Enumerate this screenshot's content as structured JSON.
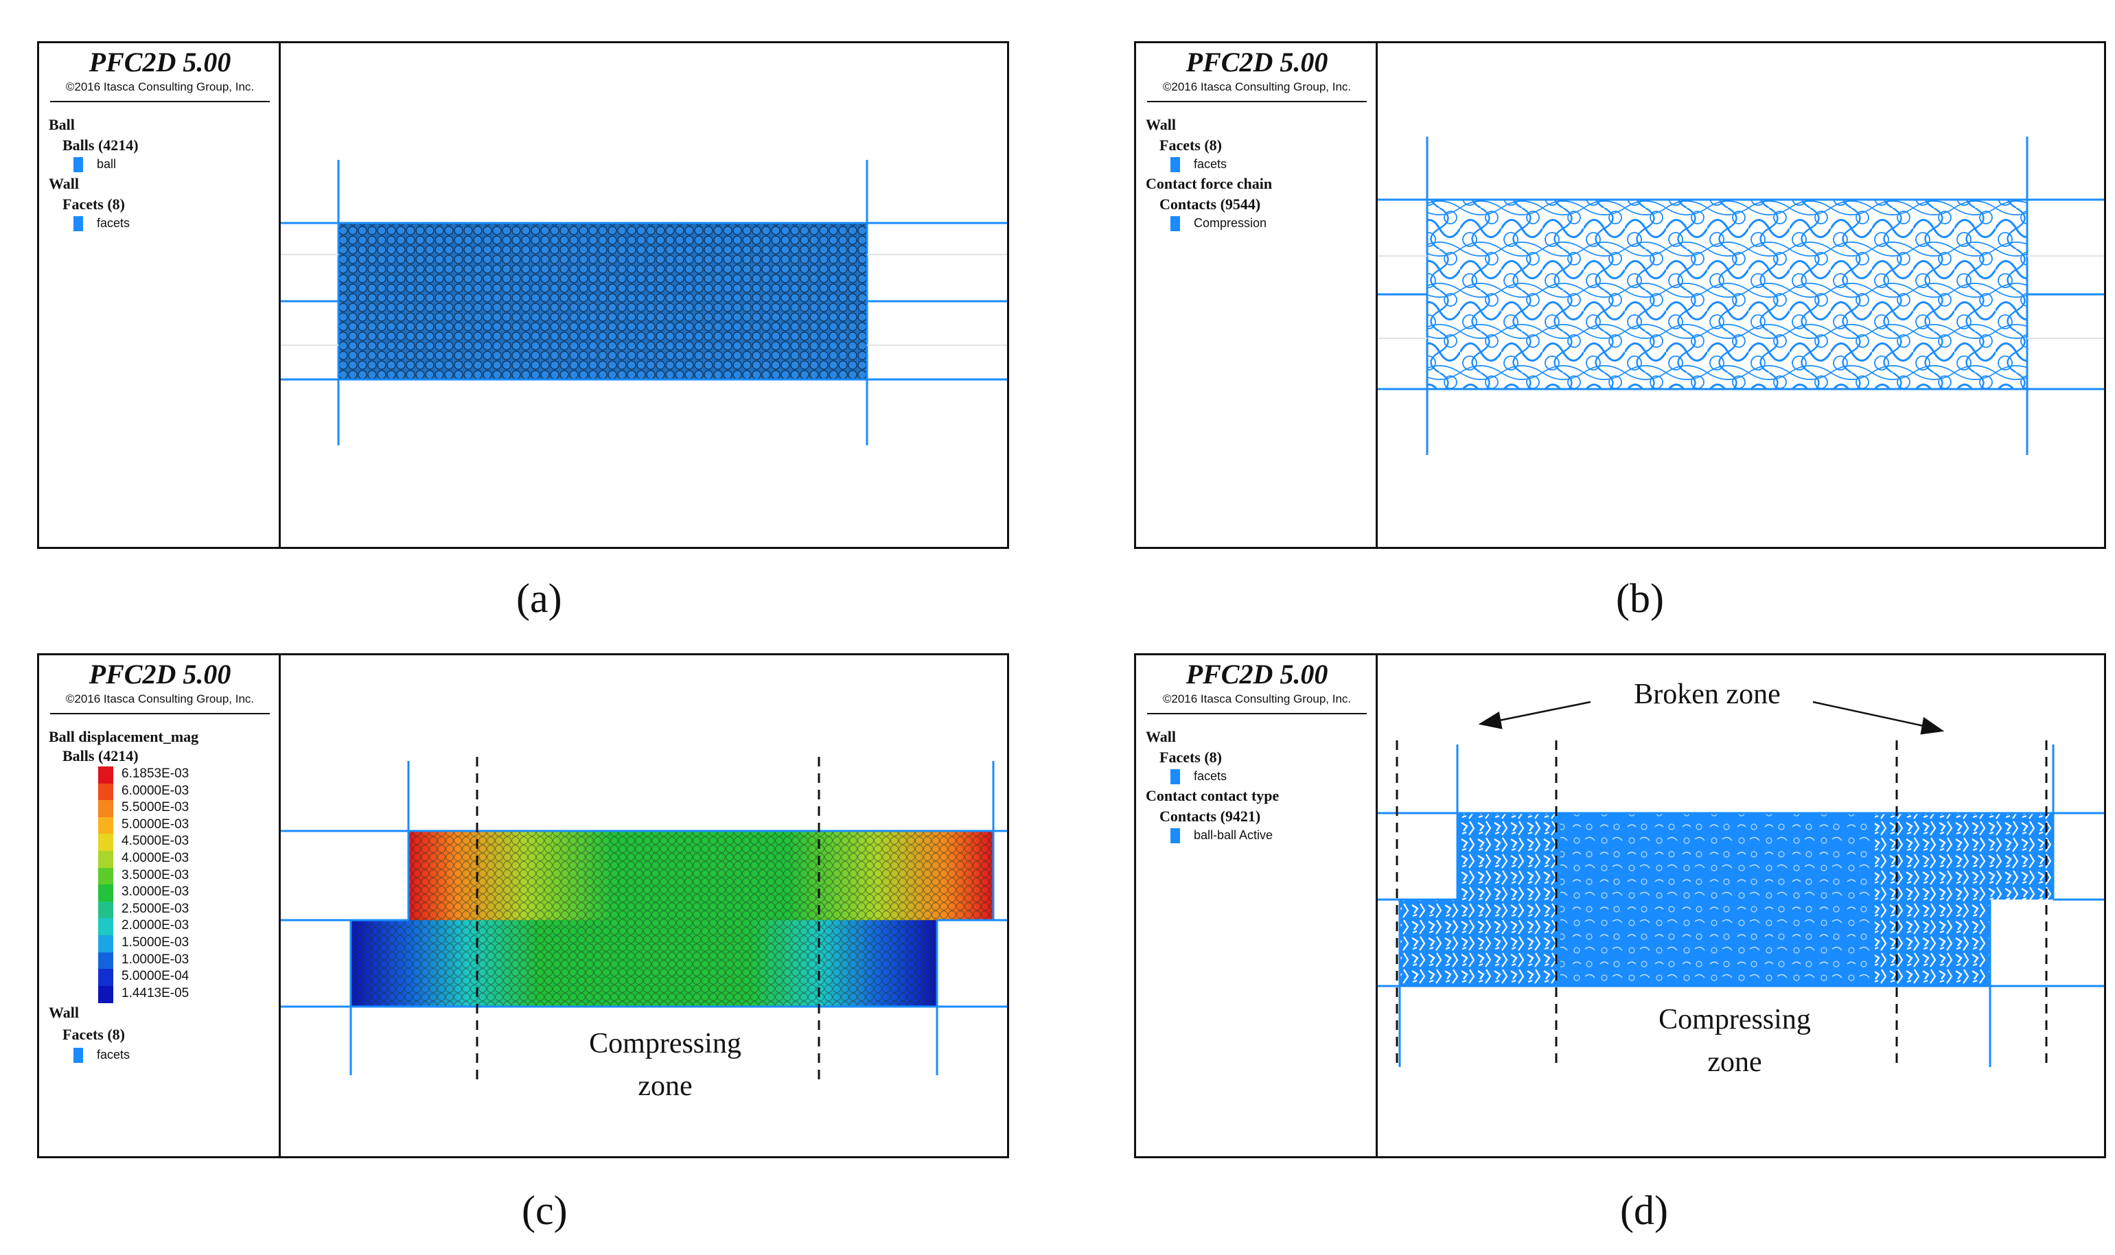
{
  "panels": {
    "a": {
      "title": "PFC2D 5.00",
      "copyright": "©2016 Itasca Consulting Group, Inc.",
      "legend": [
        {
          "type": "heading",
          "text": "Ball"
        },
        {
          "type": "group",
          "text": "Balls (4214)"
        },
        {
          "type": "item",
          "text": "ball"
        },
        {
          "type": "heading",
          "text": "Wall"
        },
        {
          "type": "group",
          "text": "Facets (8)"
        },
        {
          "type": "item",
          "text": "facets"
        }
      ],
      "caption": "(a)"
    },
    "b": {
      "title": "PFC2D 5.00",
      "copyright": "©2016 Itasca Consulting Group, Inc.",
      "legend": [
        {
          "type": "heading",
          "text": "Wall"
        },
        {
          "type": "group",
          "text": "Facets (8)"
        },
        {
          "type": "item",
          "text": "facets"
        },
        {
          "type": "heading",
          "text": "Contact force chain"
        },
        {
          "type": "group",
          "text": "Contacts (9544)"
        },
        {
          "type": "item",
          "text": "Compression"
        }
      ],
      "caption": "(b)"
    },
    "c": {
      "title": "PFC2D 5.00",
      "copyright": "©2016 Itasca Consulting Group, Inc.",
      "legend_top": [
        {
          "type": "heading",
          "text": "Ball displacement_mag"
        },
        {
          "type": "group",
          "text": "Balls (4214)"
        }
      ],
      "scale": [
        {
          "label": "6.1853E-03",
          "color": "#e0141a"
        },
        {
          "label": "6.0000E-03",
          "color": "#f04a1a"
        },
        {
          "label": "5.5000E-03",
          "color": "#f7861d"
        },
        {
          "label": "5.0000E-03",
          "color": "#f9b21e"
        },
        {
          "label": "4.5000E-03",
          "color": "#e9d421"
        },
        {
          "label": "4.0000E-03",
          "color": "#a9d62a"
        },
        {
          "label": "3.5000E-03",
          "color": "#5ccb2c"
        },
        {
          "label": "3.0000E-03",
          "color": "#22c23a"
        },
        {
          "label": "2.5000E-03",
          "color": "#20c28a"
        },
        {
          "label": "2.0000E-03",
          "color": "#1ec8c4"
        },
        {
          "label": "1.5000E-03",
          "color": "#1aa6e6"
        },
        {
          "label": "1.0000E-03",
          "color": "#1463de"
        },
        {
          "label": "5.0000E-04",
          "color": "#0f2fd1"
        },
        {
          "label": "1.4413E-05",
          "color": "#0a14b8"
        }
      ],
      "legend_bottom": [
        {
          "type": "heading",
          "text": "Wall"
        },
        {
          "type": "group",
          "text": "Facets (8)"
        },
        {
          "type": "item",
          "text": "facets"
        }
      ],
      "annotation": "Compressing\nzone",
      "annotation_line1": "Compressing",
      "annotation_line2": "zone",
      "caption": "(c)"
    },
    "d": {
      "title": "PFC2D 5.00",
      "copyright": "©2016 Itasca Consulting Group, Inc.",
      "legend": [
        {
          "type": "heading",
          "text": "Wall"
        },
        {
          "type": "group",
          "text": "Facets (8)"
        },
        {
          "type": "item",
          "text": "facets"
        },
        {
          "type": "heading",
          "text": "Contact contact type"
        },
        {
          "type": "group",
          "text": "Contacts (9421)"
        },
        {
          "type": "item",
          "text": "ball-ball Active"
        }
      ],
      "broken_label": "Broken zone",
      "annotation_line1": "Compressing",
      "annotation_line2": "zone",
      "caption": "(d)"
    }
  },
  "colors": {
    "wall": "#1a8cff",
    "ball_fill": "#1f7fd6",
    "contact": "#1a8cff"
  }
}
